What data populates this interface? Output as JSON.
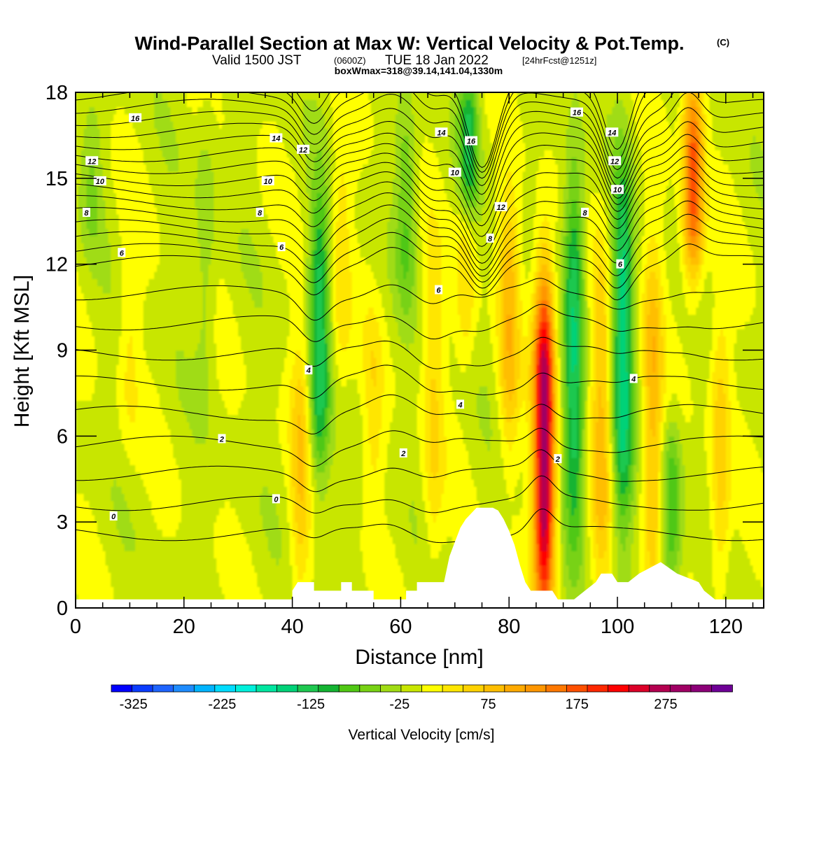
{
  "title": {
    "main": "Wind-Parallel Section at Max W: Vertical Velocity & Pot.Temp.",
    "main_mark": "(C)",
    "sub_prefix": "Valid 1500 JST",
    "sub_z": "(0600Z)",
    "sub_mid": "TUE 18 Jan 2022",
    "sub_fcst": "[24hrFcst@1251z]",
    "box": "boxWmax=318@39.14,141.04,1330m"
  },
  "chart_data": {
    "type": "heatmap",
    "xlabel": "Distance [nm]",
    "ylabel": "Height [Kft MSL]",
    "xlim": [
      0,
      127
    ],
    "ylim": [
      0,
      18
    ],
    "xticks": [
      "0",
      "20",
      "40",
      "60",
      "80",
      "100",
      "120"
    ],
    "xtick_values": [
      0,
      20,
      40,
      60,
      80,
      100,
      120
    ],
    "yticks": [
      "0",
      "3",
      "6",
      "9",
      "12",
      "15",
      "18"
    ],
    "ytick_values": [
      0,
      3,
      6,
      9,
      12,
      15,
      18
    ],
    "fill_variable": "Vertical Velocity [cm/s]",
    "contour_variable": "Potential Temperature (C)",
    "max_w": 318,
    "colorbar": {
      "title": "Vertical Velocity [cm/s]",
      "min": -350,
      "max": 350,
      "step": 25,
      "labels": [
        "-325",
        "-225",
        "-125",
        "-25",
        "75",
        "175",
        "275"
      ],
      "label_values": [
        -325,
        -225,
        -125,
        -25,
        75,
        175,
        275
      ],
      "colors": [
        "#0000ff",
        "#0a3cff",
        "#1e64ff",
        "#1e8cff",
        "#00b4ff",
        "#00dcff",
        "#00f0dc",
        "#00e6a0",
        "#00d278",
        "#1ec850",
        "#14b432",
        "#50c814",
        "#78d214",
        "#a0dc14",
        "#c8e600",
        "#ffff00",
        "#ffe600",
        "#ffd200",
        "#ffbe00",
        "#ffaa00",
        "#ff9600",
        "#ff7800",
        "#ff5000",
        "#ff2800",
        "#ff0000",
        "#dc0028",
        "#b40050",
        "#a00064",
        "#8c0078",
        "#6e0096"
      ]
    },
    "updraft_bands": [
      {
        "x": 41.5,
        "lo": 1,
        "hi": 9,
        "peak": 70
      },
      {
        "x": 49,
        "lo": 8,
        "hi": 16,
        "peak": 50
      },
      {
        "x": 55,
        "lo": 4,
        "hi": 10,
        "peak": 40
      },
      {
        "x": 66,
        "lo": 2,
        "hi": 12,
        "peak": 55
      },
      {
        "x": 72,
        "lo": 9,
        "hi": 15,
        "peak": 55
      },
      {
        "x": 80,
        "lo": 6,
        "hi": 14,
        "peak": 90
      },
      {
        "x": 86.5,
        "lo": 0.5,
        "hi": 11,
        "peak": 318
      },
      {
        "x": 97,
        "lo": 1,
        "hi": 12,
        "peak": 85
      },
      {
        "x": 106.5,
        "lo": 1,
        "hi": 12,
        "peak": 95
      },
      {
        "x": 114,
        "lo": 12,
        "hi": 18,
        "peak": 190
      },
      {
        "x": 119,
        "lo": 1,
        "hi": 10,
        "peak": 70
      },
      {
        "x": 10,
        "lo": 6,
        "hi": 13,
        "peak": 35
      }
    ],
    "downdraft_bands": [
      {
        "x": 45,
        "lo": 5,
        "hi": 14,
        "peak": -130
      },
      {
        "x": 61,
        "lo": 11,
        "hi": 17,
        "peak": -65
      },
      {
        "x": 72.5,
        "lo": 14,
        "hi": 18,
        "peak": -120
      },
      {
        "x": 92,
        "lo": 3,
        "hi": 15,
        "peak": -140
      },
      {
        "x": 101,
        "lo": 3,
        "hi": 15,
        "peak": -150
      },
      {
        "x": 110,
        "lo": 1,
        "hi": 6,
        "peak": -90
      },
      {
        "x": 24,
        "lo": 8,
        "hi": 17,
        "peak": -35
      },
      {
        "x": 3,
        "lo": 13,
        "hi": 17,
        "peak": -40
      }
    ],
    "terrain": [
      [
        0,
        0.3
      ],
      [
        40,
        0.3
      ],
      [
        40,
        0.6
      ],
      [
        41,
        0.9
      ],
      [
        44,
        0.9
      ],
      [
        44,
        0.6
      ],
      [
        49,
        0.6
      ],
      [
        49,
        0.9
      ],
      [
        51,
        0.9
      ],
      [
        51,
        0.6
      ],
      [
        55,
        0.6
      ],
      [
        55,
        0.3
      ],
      [
        61,
        0.3
      ],
      [
        61,
        0.6
      ],
      [
        63,
        0.6
      ],
      [
        63,
        0.9
      ],
      [
        68,
        0.9
      ],
      [
        69,
        1.8
      ],
      [
        70,
        2.3
      ],
      [
        71,
        2.8
      ],
      [
        72,
        3.1
      ],
      [
        74,
        3.5
      ],
      [
        77,
        3.5
      ],
      [
        78,
        3.4
      ],
      [
        79,
        3.1
      ],
      [
        80,
        2.7
      ],
      [
        81,
        2.2
      ],
      [
        82,
        1.5
      ],
      [
        83,
        0.9
      ],
      [
        84,
        0.6
      ],
      [
        88,
        0.6
      ],
      [
        89,
        0.3
      ],
      [
        92,
        0.3
      ],
      [
        94,
        0.6
      ],
      [
        96,
        0.9
      ],
      [
        97,
        1.2
      ],
      [
        99,
        1.2
      ],
      [
        100,
        0.9
      ],
      [
        102,
        0.9
      ],
      [
        104,
        1.2
      ],
      [
        108,
        1.6
      ],
      [
        111,
        1.2
      ],
      [
        115,
        0.9
      ],
      [
        116,
        0.6
      ],
      [
        118,
        0.3
      ],
      [
        127,
        0.3
      ]
    ],
    "contour_labels": [
      {
        "text": "16",
        "x": 11,
        "y": 17.1
      },
      {
        "text": "14",
        "x": 37,
        "y": 16.4
      },
      {
        "text": "12",
        "x": 42,
        "y": 16.0
      },
      {
        "text": "12",
        "x": 3,
        "y": 15.6
      },
      {
        "text": "10",
        "x": 4.5,
        "y": 14.9
      },
      {
        "text": "10",
        "x": 35.5,
        "y": 14.9
      },
      {
        "text": "8",
        "x": 2,
        "y": 13.8
      },
      {
        "text": "8",
        "x": 34,
        "y": 13.8
      },
      {
        "text": "6",
        "x": 8.5,
        "y": 12.4
      },
      {
        "text": "6",
        "x": 38,
        "y": 12.6
      },
      {
        "text": "14",
        "x": 67.5,
        "y": 16.6
      },
      {
        "text": "16",
        "x": 73,
        "y": 16.3
      },
      {
        "text": "10",
        "x": 70,
        "y": 15.2
      },
      {
        "text": "12",
        "x": 78.5,
        "y": 14.0
      },
      {
        "text": "8",
        "x": 76.5,
        "y": 12.9
      },
      {
        "text": "6",
        "x": 67,
        "y": 11.1
      },
      {
        "text": "16",
        "x": 92.5,
        "y": 17.3
      },
      {
        "text": "14",
        "x": 99,
        "y": 16.6
      },
      {
        "text": "12",
        "x": 99.5,
        "y": 15.6
      },
      {
        "text": "10",
        "x": 100,
        "y": 14.6
      },
      {
        "text": "8",
        "x": 94,
        "y": 13.8
      },
      {
        "text": "6",
        "x": 100.5,
        "y": 12.0
      },
      {
        "text": "4",
        "x": 43,
        "y": 8.3
      },
      {
        "text": "4",
        "x": 71,
        "y": 7.1
      },
      {
        "text": "4",
        "x": 103,
        "y": 8.0
      },
      {
        "text": "2",
        "x": 27,
        "y": 5.9
      },
      {
        "text": "2",
        "x": 60.5,
        "y": 5.4
      },
      {
        "text": "2",
        "x": 89,
        "y": 5.2
      },
      {
        "text": "0",
        "x": 37,
        "y": 3.8
      },
      {
        "text": "0",
        "x": 7,
        "y": 3.2
      }
    ]
  }
}
